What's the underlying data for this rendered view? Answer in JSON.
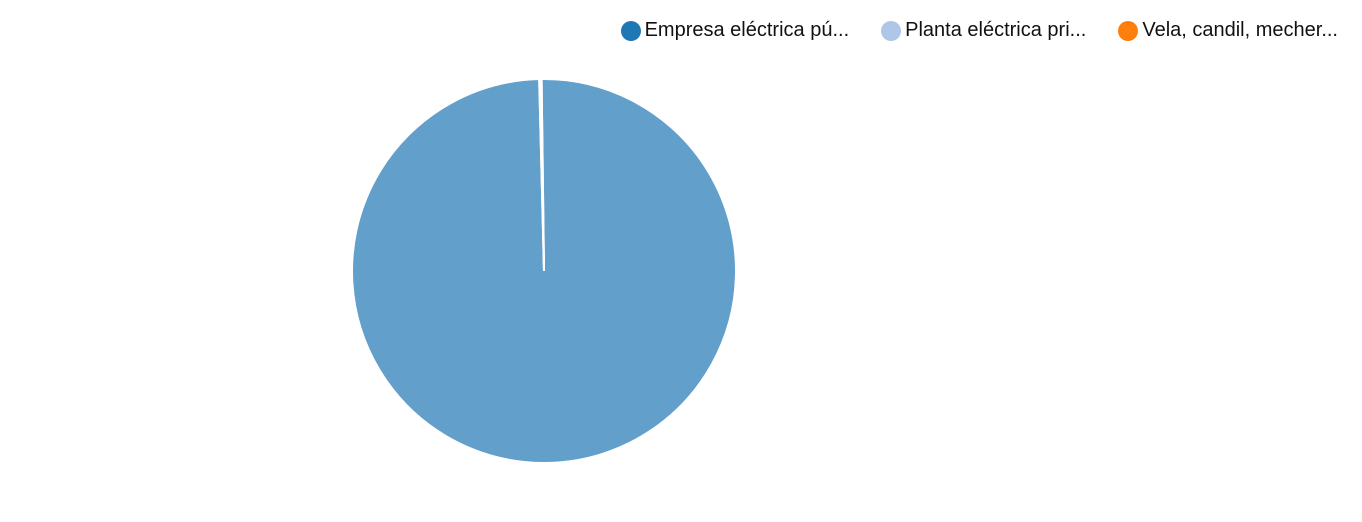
{
  "chart_data": {
    "type": "pie",
    "title": "",
    "legend_position": "top-right",
    "slices": [
      {
        "label": "Empresa eléctrica pú...",
        "value": 99.8,
        "color": "#1f77b4",
        "fill": "#629fca"
      },
      {
        "label": "Planta eléctrica pri...",
        "value": 0.1,
        "color": "#aec7e8",
        "fill": "#aec7e8"
      },
      {
        "label": "Vela, candil, mecher...",
        "value": 0.1,
        "color": "#ff7f0e",
        "fill": "#ff7f0e"
      }
    ]
  }
}
